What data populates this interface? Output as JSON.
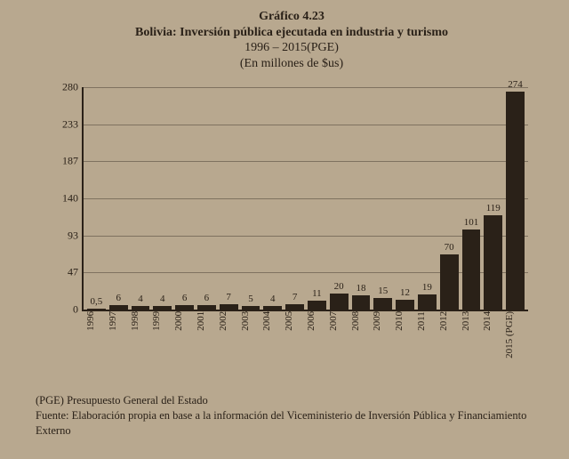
{
  "header": {
    "graph_number": "Gráfico 4.23",
    "title": "Bolivia: Inversión pública ejecutada en industria y turismo",
    "period": "1996 – 2015(PGE)",
    "unit": "(En millones de $us)"
  },
  "chart": {
    "type": "bar",
    "background_color": "#b8a88f",
    "bar_color": "#2a2118",
    "grid_color": "rgba(42,33,24,0.4)",
    "axis_color": "#2a2118",
    "ylim": [
      0,
      280
    ],
    "yticks": [
      0,
      47,
      93,
      140,
      187,
      233,
      280
    ],
    "value_fontsize": 11,
    "xlabel_fontsize": 11,
    "ytick_fontsize": 12,
    "series": [
      {
        "label": "1996",
        "value": 0.5,
        "display": "0,5"
      },
      {
        "label": "1997",
        "value": 6,
        "display": "6"
      },
      {
        "label": "1998",
        "value": 4,
        "display": "4"
      },
      {
        "label": "1999",
        "value": 4,
        "display": "4"
      },
      {
        "label": "2000",
        "value": 6,
        "display": "6"
      },
      {
        "label": "2001",
        "value": 6,
        "display": "6"
      },
      {
        "label": "2002",
        "value": 7,
        "display": "7"
      },
      {
        "label": "2003",
        "value": 5,
        "display": "5"
      },
      {
        "label": "2004",
        "value": 4,
        "display": "4"
      },
      {
        "label": "2005",
        "value": 7,
        "display": "7"
      },
      {
        "label": "2006",
        "value": 11,
        "display": "11"
      },
      {
        "label": "2007",
        "value": 20,
        "display": "20"
      },
      {
        "label": "2008",
        "value": 18,
        "display": "18"
      },
      {
        "label": "2009",
        "value": 15,
        "display": "15"
      },
      {
        "label": "2010",
        "value": 12,
        "display": "12"
      },
      {
        "label": "2011",
        "value": 19,
        "display": "19"
      },
      {
        "label": "2012",
        "value": 70,
        "display": "70"
      },
      {
        "label": "2013",
        "value": 101,
        "display": "101"
      },
      {
        "label": "2014",
        "value": 119,
        "display": "119"
      },
      {
        "label": "2015\n(PGE)",
        "value": 274,
        "display": "274"
      }
    ]
  },
  "footer": {
    "note": "(PGE) Presupuesto General del Estado",
    "source": "Fuente: Elaboración propia en base a la información del Viceministerio de Inversión Pública y Financiamiento Externo"
  }
}
